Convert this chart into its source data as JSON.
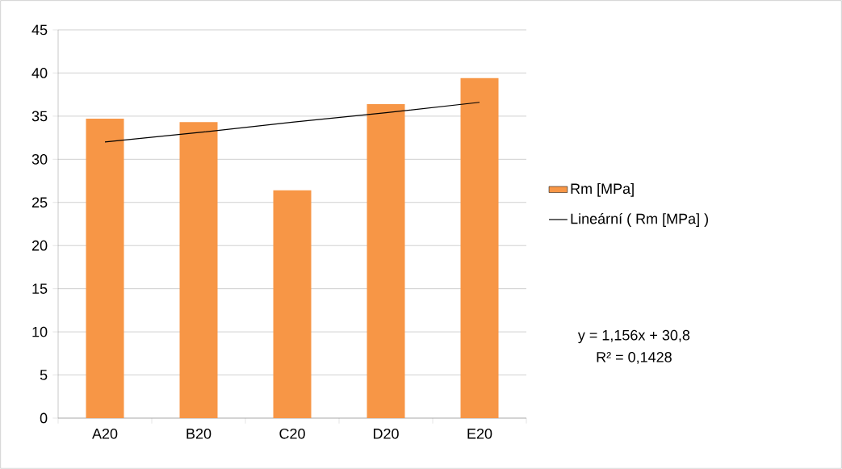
{
  "chart_data": {
    "type": "bar",
    "categories": [
      "A20",
      "B20",
      "C20",
      "D20",
      "E20"
    ],
    "series": [
      {
        "name": "Rm [MPa]",
        "type": "bar",
        "color": "#f79646",
        "values": [
          34.7,
          34.3,
          26.4,
          36.4,
          39.4
        ]
      },
      {
        "name": "Lineární ( Rm [MPa] )",
        "type": "line",
        "color": "#000000",
        "values": [
          32.0,
          33.1,
          34.3,
          35.4,
          36.6
        ]
      }
    ],
    "ylim": [
      0,
      45
    ],
    "yticks": [
      0,
      5,
      10,
      15,
      20,
      25,
      30,
      35,
      40,
      45
    ],
    "grid": "y",
    "legend": "right",
    "annotations": [
      "y = 1,156x + 30,8",
      "R² = 0,1428"
    ]
  }
}
